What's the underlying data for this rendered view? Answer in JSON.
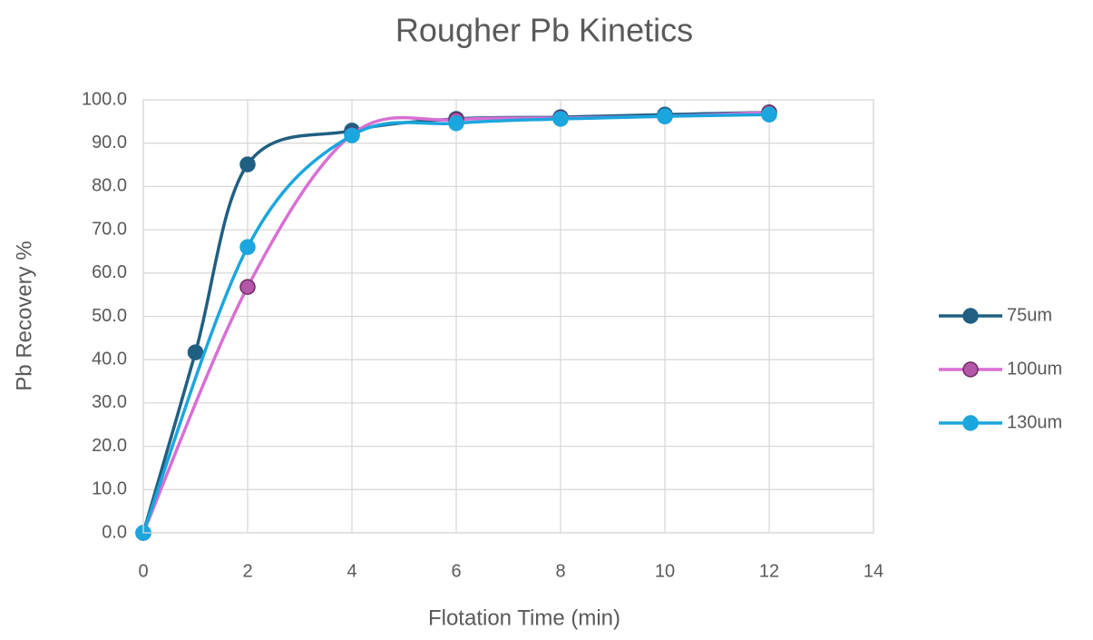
{
  "chart_data": {
    "type": "line",
    "title": "Rougher Pb Kinetics",
    "x_label": "Flotation Time (min)",
    "y_label": "Pb Recovery %",
    "xlim": [
      0,
      14
    ],
    "xticks": [
      0,
      2,
      4,
      6,
      8,
      10,
      12,
      14
    ],
    "ylim": [
      0,
      100
    ],
    "yticks": [
      {
        "value": 0,
        "label": "0.0"
      },
      {
        "value": 10,
        "label": "10.0"
      },
      {
        "value": 20,
        "label": "20.0"
      },
      {
        "value": 30,
        "label": "30.0"
      },
      {
        "value": 40,
        "label": "40.0"
      },
      {
        "value": 50,
        "label": "50.0"
      },
      {
        "value": 60,
        "label": "60.0"
      },
      {
        "value": 70,
        "label": "70.0"
      },
      {
        "value": 80,
        "label": "80.0"
      },
      {
        "value": 90,
        "label": "90.0"
      },
      {
        "value": 100,
        "label": "100.0"
      }
    ],
    "grid": true,
    "smooth": true,
    "legend": "right",
    "series": [
      {
        "name": "75um",
        "color": "#1f5f82",
        "marker_color": "#1f5f82",
        "x": [
          0,
          1,
          2,
          4,
          6,
          8,
          10,
          12
        ],
        "values": [
          0,
          41.7,
          85.1,
          92.9,
          95.6,
          96.0,
          96.6,
          97.1
        ]
      },
      {
        "name": "100um",
        "color": "#d86fd4",
        "marker_color": "#b457a8",
        "x": [
          0,
          2,
          4,
          6,
          8,
          10,
          12
        ],
        "values": [
          0,
          56.8,
          92.0,
          95.4,
          95.8,
          96.2,
          97.1
        ]
      },
      {
        "name": "130um",
        "color": "#1ba6dd",
        "marker_color": "#1ba6dd",
        "x": [
          0,
          2,
          4,
          6,
          8,
          10,
          12
        ],
        "values": [
          0,
          66.0,
          91.8,
          94.6,
          95.6,
          96.2,
          96.6
        ]
      }
    ]
  }
}
